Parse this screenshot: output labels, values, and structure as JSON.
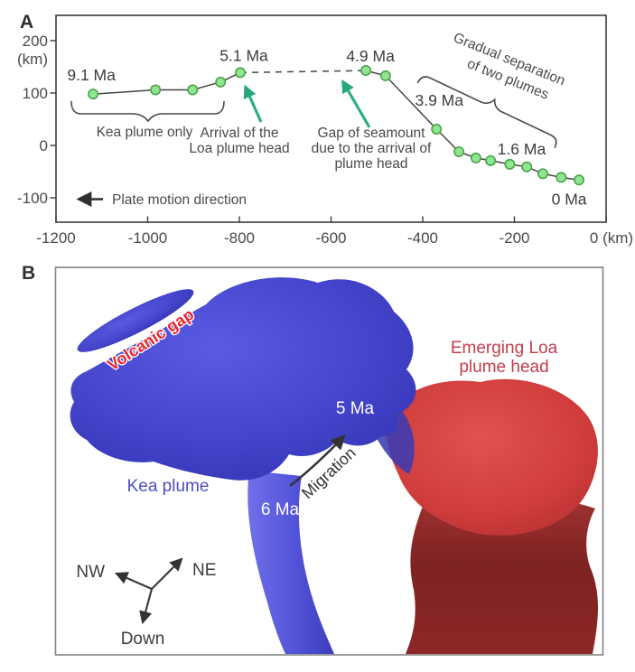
{
  "panel_a": {
    "label": "A",
    "y_unit": "(km)",
    "annotations": {
      "kea": "Kea plume only",
      "arrival": [
        "Arrival of the",
        "Loa plume head"
      ],
      "gap": [
        "Gap of seamount",
        "due to the arrival of",
        "plume head"
      ],
      "separation": [
        "Gradual separation",
        "of two plumes"
      ],
      "plate_motion": "Plate motion direction"
    }
  },
  "chart_data": {
    "type": "line",
    "title": "",
    "xlabel": "(km)",
    "ylabel": "(km)",
    "xlim": [
      -1200,
      0
    ],
    "ylim": [
      -150,
      250
    ],
    "x_ticks": [
      -1200,
      -1000,
      -800,
      -600,
      -400,
      -200,
      0
    ],
    "x_tick_labels": [
      "-1200",
      "-1000",
      "-800",
      "-600",
      "-400",
      "-200",
      "0 (km)"
    ],
    "y_ticks": [
      200,
      100,
      0,
      -100
    ],
    "grid": false,
    "points": [
      {
        "x": -1119,
        "y": 98,
        "label": "9.1 Ma"
      },
      {
        "x": -983,
        "y": 106
      },
      {
        "x": -902,
        "y": 106
      },
      {
        "x": -841,
        "y": 121
      },
      {
        "x": -798,
        "y": 139,
        "label": "5.1 Ma"
      },
      {
        "x": -524,
        "y": 143,
        "label": "4.9 Ma"
      },
      {
        "x": -481,
        "y": 133
      },
      {
        "x": -370,
        "y": 31,
        "label": "3.9 Ma"
      },
      {
        "x": -321,
        "y": -12
      },
      {
        "x": -284,
        "y": -24
      },
      {
        "x": -252,
        "y": -29
      },
      {
        "x": -210,
        "y": -36,
        "label": "1.6 Ma"
      },
      {
        "x": -173,
        "y": -41
      },
      {
        "x": -138,
        "y": -54
      },
      {
        "x": -98,
        "y": -61
      },
      {
        "x": -59,
        "y": -66,
        "label": "0 Ma"
      }
    ],
    "dashed_segment_indices": [
      4,
      5
    ],
    "marker_color": "#90e690",
    "marker_edge_color": "#4ba24b",
    "line_color": "#454545",
    "annotation_arrow_color": "#2fae81"
  },
  "panel_b": {
    "label": "B",
    "volcanic_gap": "Volcanic gap",
    "emerging_loa": [
      "Emerging Loa",
      "plume head"
    ],
    "kea_plume": "Kea plume",
    "age_5": "5 Ma",
    "age_6": "6 Ma",
    "migration": "Migration",
    "compass": {
      "nw": "NW",
      "ne": "NE",
      "down": "Down"
    },
    "colors": {
      "kea_blue": "#4747ce",
      "loa_red": "#d64444",
      "loa_stem_dark_red": "#7e2222",
      "label_red": "#c53b4b",
      "volcanic_gap_red": "#e8242e",
      "kea_label_blue": "#4d4dc2"
    }
  }
}
